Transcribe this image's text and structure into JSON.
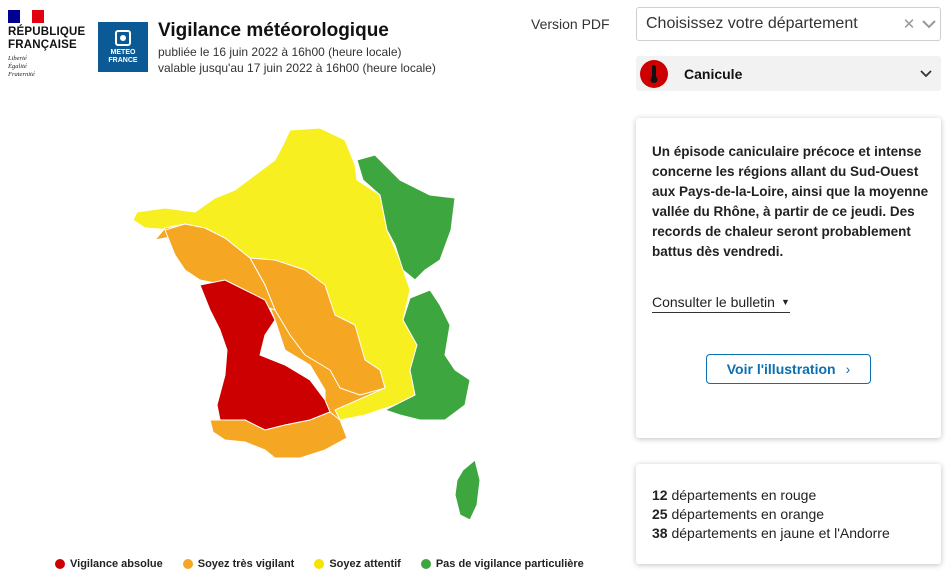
{
  "header": {
    "republique_logo": {
      "name": "RÉPUBLIQUE\nFRANÇAISE",
      "motto": [
        "Liberté",
        "Égalité",
        "Fraternité"
      ]
    },
    "meteo_logo": {
      "text": "METEO\nFRANCE"
    },
    "title": "Vigilance météorologique",
    "published": "publiée le 16 juin 2022 à 16h00 (heure locale)",
    "valid_until": "valable jusqu'au 17 juin 2022 à 16h00 (heure locale)",
    "pdf_link": "Version PDF"
  },
  "department_select": {
    "placeholder": "Choisissez votre département",
    "clear_icon": "close-icon",
    "chevron_icon": "chevron-down-icon"
  },
  "phenomenon": {
    "label": "Canicule",
    "icon": "thermometer-icon",
    "icon_color": "#cc0000"
  },
  "info_card": {
    "description": "Un épisode caniculaire précoce et intense concerne les régions allant du Sud-Ouest aux Pays-de-la-Loire, ainsi que la moyenne vallée du Rhône, à partir de ce jeudi. Des records de chaleur seront probablement battus dès vendredi.",
    "bulletin_link": "Consulter le bulletin",
    "illustration_button": "Voir l'illustration"
  },
  "stats": [
    {
      "count": "12",
      "label": " départements en rouge"
    },
    {
      "count": "25",
      "label": " départements en orange"
    },
    {
      "count": "38",
      "label": " départements en jaune et l'Andorre"
    }
  ],
  "legend": [
    {
      "label": "Vigilance absolue",
      "color": "#cc0000"
    },
    {
      "label": "Soyez très vigilant",
      "color": "#f5a623"
    },
    {
      "label": "Soyez attentif",
      "color": "#f5e400"
    },
    {
      "label": "Pas de vigilance particulière",
      "color": "#3ea63e"
    }
  ],
  "colors": {
    "red": "#cc0000",
    "orange": "#f5a623",
    "yellow": "#f7ef1f",
    "green": "#3ea63e",
    "brand_blue": "#0b5a96"
  }
}
